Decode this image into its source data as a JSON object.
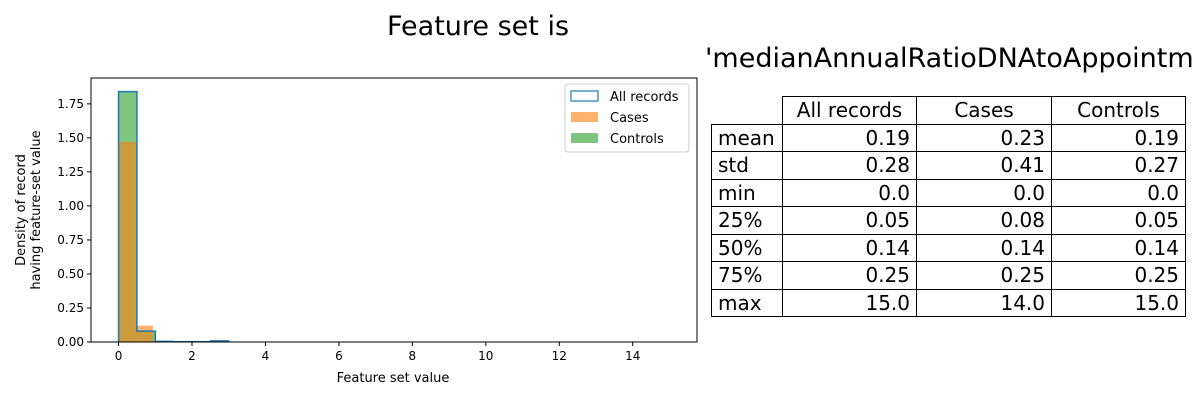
{
  "chart_data": {
    "type": "histogram",
    "xlabel": "Feature set value",
    "ylabel": [
      "Density of record",
      "having feature-set value"
    ],
    "xlim": [
      -0.75,
      15.75
    ],
    "ylim": [
      0,
      1.94
    ],
    "xticks": [
      0,
      2,
      4,
      6,
      8,
      10,
      12,
      14
    ],
    "yticks": [
      0.0,
      0.25,
      0.5,
      0.75,
      1.0,
      1.25,
      1.5,
      1.75
    ],
    "ytick_labels": [
      "0.00",
      "0.25",
      "0.50",
      "0.75",
      "1.00",
      "1.25",
      "1.50",
      "1.75"
    ],
    "legend_position": "upper-right",
    "series": [
      {
        "name": "Controls",
        "style": "filled",
        "color": "#2ca02c",
        "bin_width": 0.5,
        "bins_start": 0,
        "density": [
          1.84,
          0.08,
          0.005,
          0.002,
          0.002,
          0.001
        ]
      },
      {
        "name": "Cases",
        "style": "filled",
        "color": "#ff7f0e",
        "bin_width": 0.4667,
        "bins_start": 0,
        "density": [
          1.47,
          0.12,
          0.006,
          0.003,
          0.003,
          0.001
        ]
      },
      {
        "name": "All records",
        "style": "step",
        "color": "#1f77b4",
        "bin_width": 0.5,
        "bins_start": 0,
        "density": [
          1.84,
          0.08,
          0.005,
          0.002,
          0.002,
          0.008
        ]
      }
    ],
    "legend": [
      "All records",
      "Cases",
      "Controls"
    ]
  },
  "title": {
    "line1": "Feature set is",
    "line2": "'medianAnnualRatioDNAtoAppointm"
  },
  "table": {
    "columns": [
      "All records",
      "Cases",
      "Controls"
    ],
    "rows": [
      {
        "label": "mean",
        "values": [
          "0.19",
          "0.23",
          "0.19"
        ]
      },
      {
        "label": "std",
        "values": [
          "0.28",
          "0.41",
          "0.27"
        ]
      },
      {
        "label": "min",
        "values": [
          "0.0",
          "0.0",
          "0.0"
        ]
      },
      {
        "label": "25%",
        "values": [
          "0.05",
          "0.08",
          "0.05"
        ]
      },
      {
        "label": "50%",
        "values": [
          "0.14",
          "0.14",
          "0.14"
        ]
      },
      {
        "label": "75%",
        "values": [
          "0.25",
          "0.25",
          "0.25"
        ]
      },
      {
        "label": "max",
        "values": [
          "15.0",
          "14.0",
          "15.0"
        ]
      }
    ]
  }
}
